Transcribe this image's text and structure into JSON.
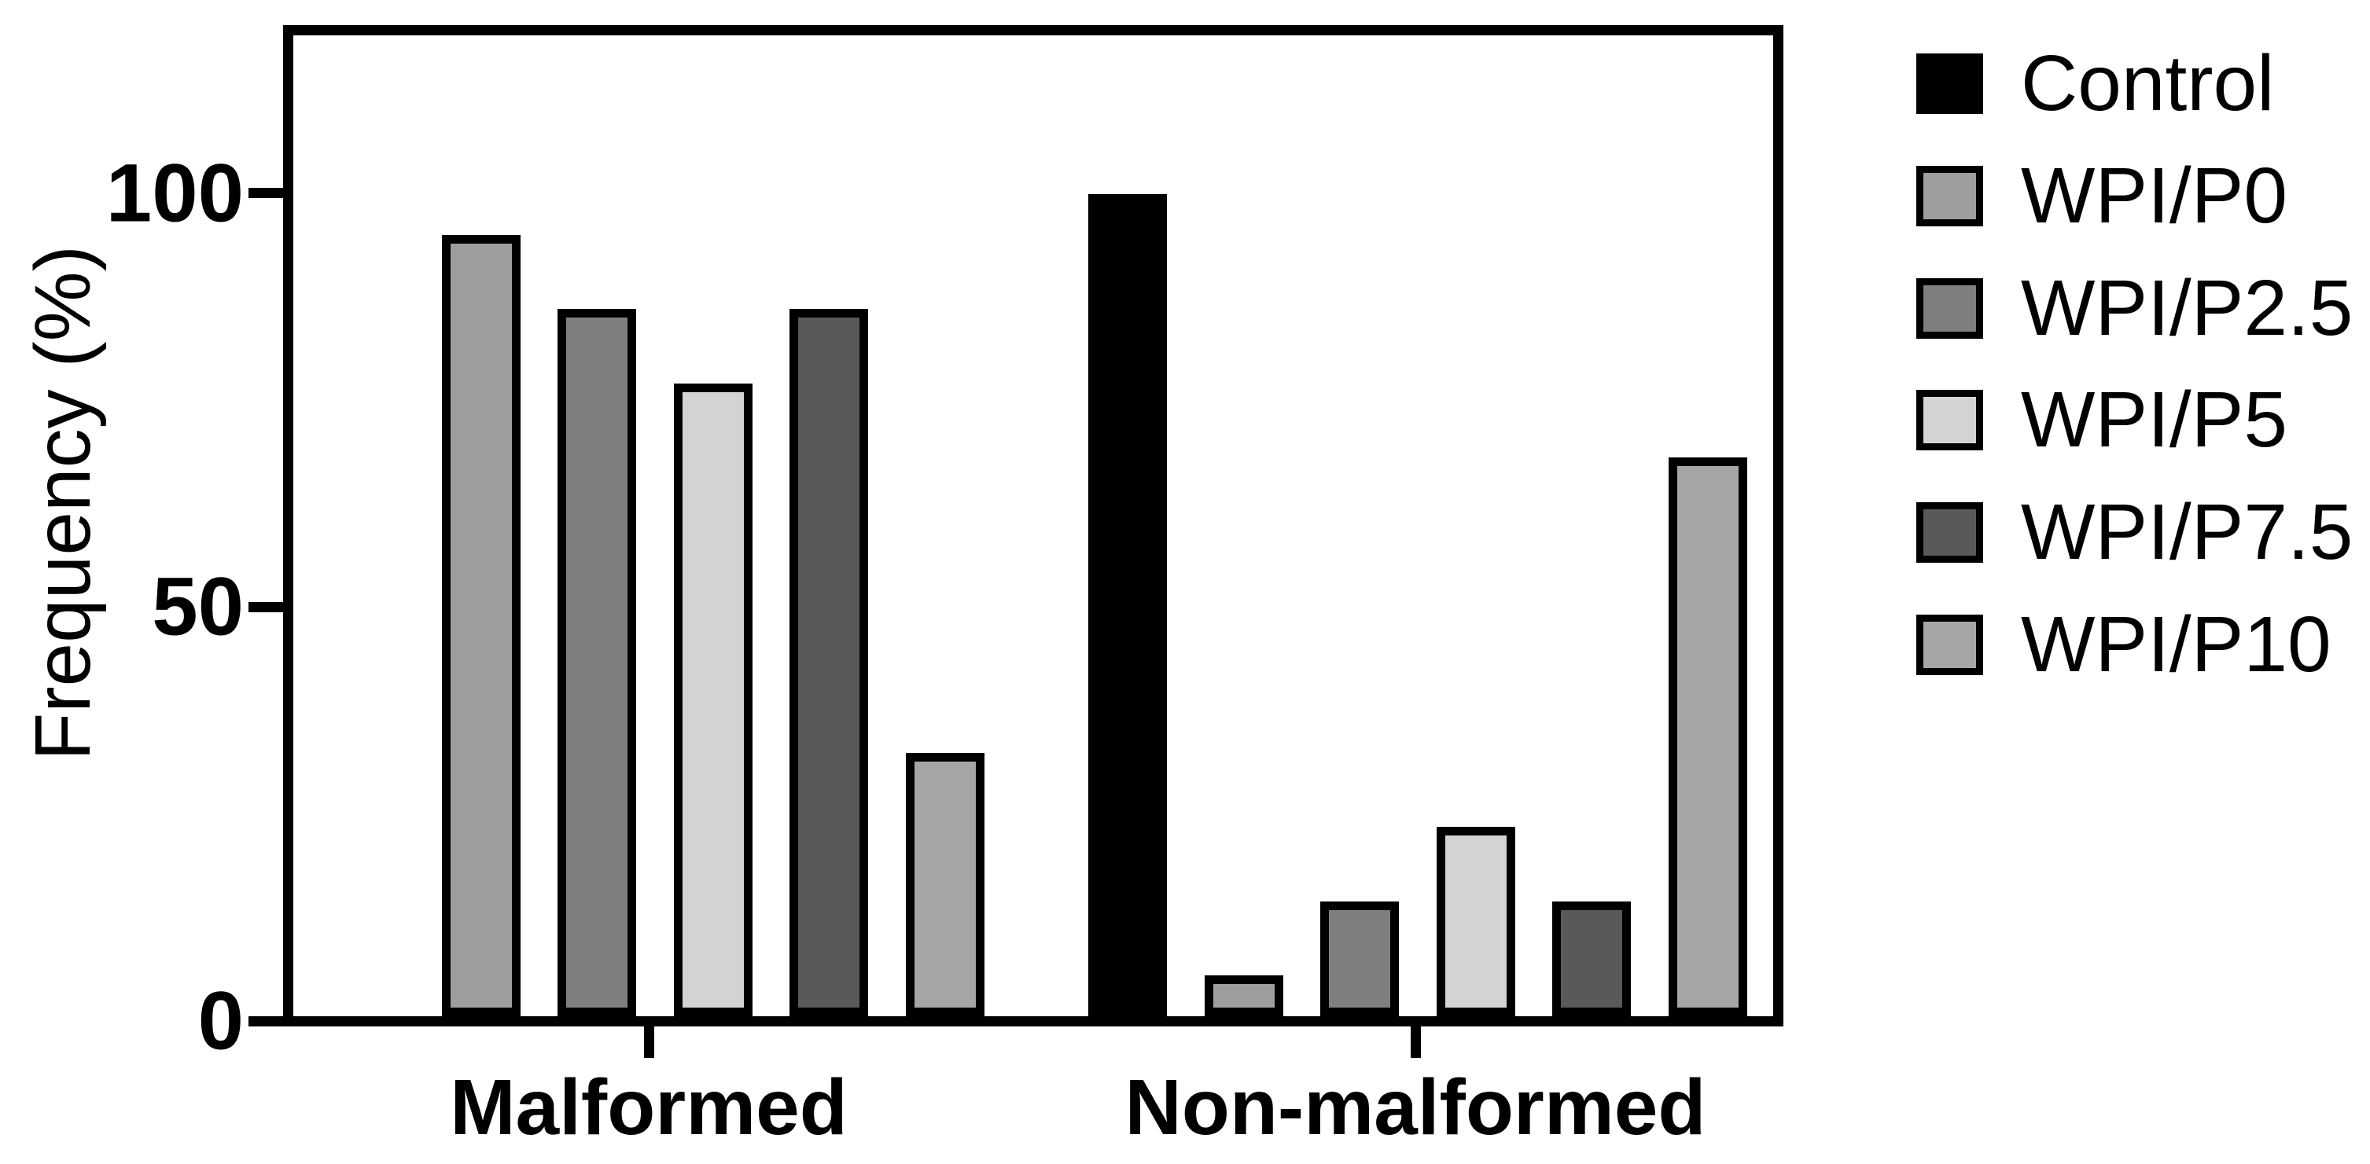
{
  "figure": {
    "kind": "grouped-bar-chart"
  },
  "chart_data": {
    "type": "bar",
    "title": "",
    "ylabel": "Frequency (%)",
    "xlabel": "",
    "categories": [
      "Malformed",
      "Non-malformed"
    ],
    "yticks": [
      0,
      50,
      100
    ],
    "ylim": [
      0,
      120
    ],
    "grid": false,
    "legend_position": "right",
    "bar_outline_color": "#000000",
    "frame_color": "#000000",
    "background_color": "#FFFFFF",
    "series": [
      {
        "name": "Control",
        "color": "#000000",
        "values": [
          0,
          100
        ]
      },
      {
        "name": "WPI/P0",
        "color": "#9E9E9E",
        "values": [
          95,
          5
        ]
      },
      {
        "name": "WPI/P2.5",
        "color": "#7F7F7F",
        "values": [
          86,
          14
        ]
      },
      {
        "name": "WPI/P5",
        "color": "#D3D3D3",
        "values": [
          77,
          23
        ]
      },
      {
        "name": "WPI/P7.5",
        "color": "#595959",
        "values": [
          86,
          14
        ]
      },
      {
        "name": "WPI/P10",
        "color": "#A6A6A6",
        "values": [
          32,
          68
        ]
      }
    ]
  }
}
